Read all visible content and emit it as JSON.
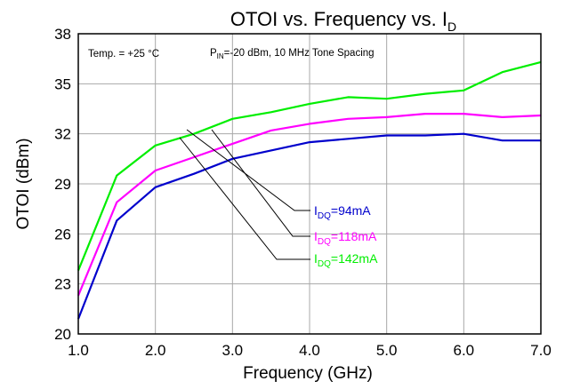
{
  "chart_data": {
    "type": "line",
    "title": "OTOI vs. Frequency vs. I",
    "title_subscript": "D",
    "xlabel": "Frequency (GHz)",
    "ylabel": "OTOI (dBm)",
    "xlim": [
      1.0,
      7.0
    ],
    "ylim": [
      20,
      38
    ],
    "x_ticks": [
      1.0,
      2.0,
      3.0,
      4.0,
      5.0,
      6.0,
      7.0
    ],
    "x_tick_labels": [
      "1.0",
      "2.0",
      "3.0",
      "4.0",
      "5.0",
      "6.0",
      "7.0"
    ],
    "y_ticks": [
      20,
      23,
      26,
      29,
      32,
      35,
      38
    ],
    "y_tick_labels": [
      "20",
      "23",
      "26",
      "29",
      "32",
      "35",
      "38"
    ],
    "grid": true,
    "annotations": {
      "temperature": "Temp. = +25 °C",
      "pin_main": "P",
      "pin_sub": "IN",
      "pin_rest": "=-20 dBm, 10 MHz Tone Spacing"
    },
    "series": [
      {
        "name": "94mA",
        "label_main": "I",
        "label_sub": "DQ",
        "label_rest": "=94mA",
        "color": "#0000cc",
        "x": [
          1.0,
          1.5,
          2.0,
          2.5,
          3.0,
          3.5,
          4.0,
          4.5,
          5.0,
          5.5,
          6.0,
          6.5,
          7.0
        ],
        "values": [
          20.9,
          26.8,
          28.8,
          29.6,
          30.5,
          31.0,
          31.5,
          31.7,
          31.9,
          31.9,
          32.0,
          31.6,
          31.6
        ]
      },
      {
        "name": "118mA",
        "label_main": "I",
        "label_sub": "DQ",
        "label_rest": "=118mA",
        "color": "#ff00ff",
        "x": [
          1.0,
          1.5,
          2.0,
          2.5,
          3.0,
          3.5,
          4.0,
          4.5,
          5.0,
          5.5,
          6.0,
          6.5,
          7.0
        ],
        "values": [
          22.3,
          27.9,
          29.8,
          30.6,
          31.4,
          32.2,
          32.6,
          32.9,
          33.0,
          33.2,
          33.2,
          33.0,
          33.1
        ]
      },
      {
        "name": "142mA",
        "label_main": "I",
        "label_sub": "DQ",
        "label_rest": "=142mA",
        "color": "#00ee00",
        "x": [
          1.0,
          1.5,
          2.0,
          2.5,
          3.0,
          3.5,
          4.0,
          4.5,
          5.0,
          5.5,
          6.0,
          6.5,
          7.0
        ],
        "values": [
          23.8,
          29.5,
          31.3,
          32.0,
          32.9,
          33.3,
          33.8,
          34.2,
          34.1,
          34.4,
          34.6,
          35.7,
          36.3
        ]
      }
    ]
  }
}
